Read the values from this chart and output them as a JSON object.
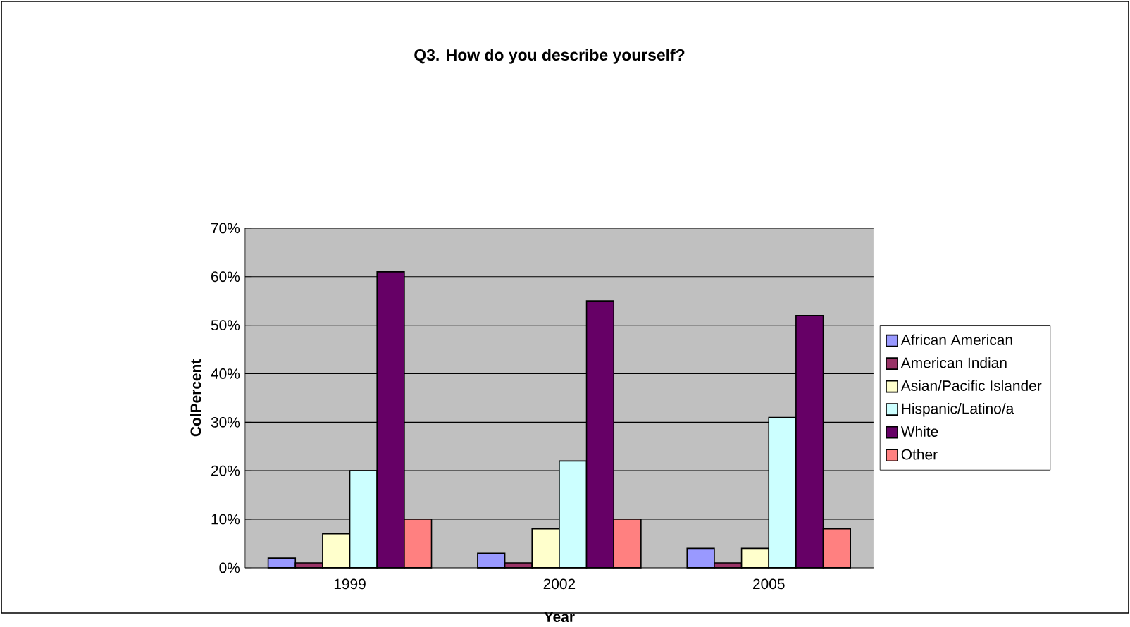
{
  "chart_data": {
    "type": "bar",
    "title": "Q3. How do you describe yourself?",
    "xlabel": "Year",
    "ylabel": "ColPercent",
    "categories": [
      "1999",
      "2002",
      "2005"
    ],
    "series": [
      {
        "name": "African American",
        "color": "#9999ff",
        "values": [
          2,
          3,
          4
        ]
      },
      {
        "name": "American Indian",
        "color": "#993366",
        "values": [
          1,
          1,
          1
        ]
      },
      {
        "name": "Asian/Pacific Islander",
        "color": "#ffffcc",
        "values": [
          7,
          8,
          4
        ]
      },
      {
        "name": "Hispanic/Latino/a",
        "color": "#ccffff",
        "values": [
          20,
          22,
          31
        ]
      },
      {
        "name": "White",
        "color": "#660066",
        "values": [
          61,
          55,
          52
        ]
      },
      {
        "name": "Other",
        "color": "#ff8080",
        "values": [
          10,
          10,
          8
        ]
      }
    ],
    "ylim": [
      0,
      70
    ],
    "yticks": [
      {
        "value": 0,
        "label": "0%"
      },
      {
        "value": 10,
        "label": "10%"
      },
      {
        "value": 20,
        "label": "20%"
      },
      {
        "value": 30,
        "label": "30%"
      },
      {
        "value": 40,
        "label": "40%"
      },
      {
        "value": 50,
        "label": "50%"
      },
      {
        "value": 60,
        "label": "60%"
      },
      {
        "value": 70,
        "label": "70%"
      }
    ],
    "grid": "y",
    "legend": "right"
  }
}
